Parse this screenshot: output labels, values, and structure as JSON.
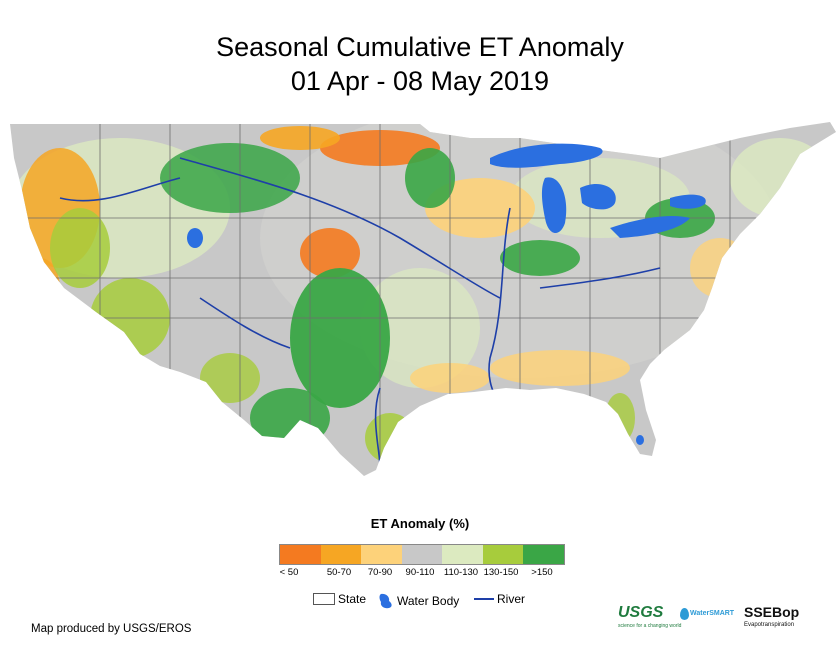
{
  "title_line1": "Seasonal Cumulative ET Anomaly",
  "title_line2": "01 Apr - 08 May 2019",
  "legend": {
    "title": "ET Anomaly (%)",
    "classes": [
      {
        "label": "< 50",
        "color": "#F47A20"
      },
      {
        "label": "50-70",
        "color": "#F6A623"
      },
      {
        "label": "70-90",
        "color": "#FDD27A"
      },
      {
        "label": "90-110",
        "color": "#C8C8C8"
      },
      {
        "label": "110-130",
        "color": "#DCEAC0"
      },
      {
        "label": "130-150",
        "color": "#A7CC3C"
      },
      {
        "label": ">150",
        "color": "#3AA646"
      }
    ]
  },
  "key": {
    "state": "State",
    "water": "Water Body",
    "river": "River",
    "water_color": "#2B6FE0",
    "river_color": "#1E3FA8"
  },
  "credit": "Map produced by USGS/EROS",
  "logos": {
    "usgs": "USGS",
    "usgs_tagline": "science for a changing world",
    "water_smart": "WaterSMART",
    "ssebop": "SSEBop",
    "ssebop_sub": "Evapotranspiration"
  }
}
